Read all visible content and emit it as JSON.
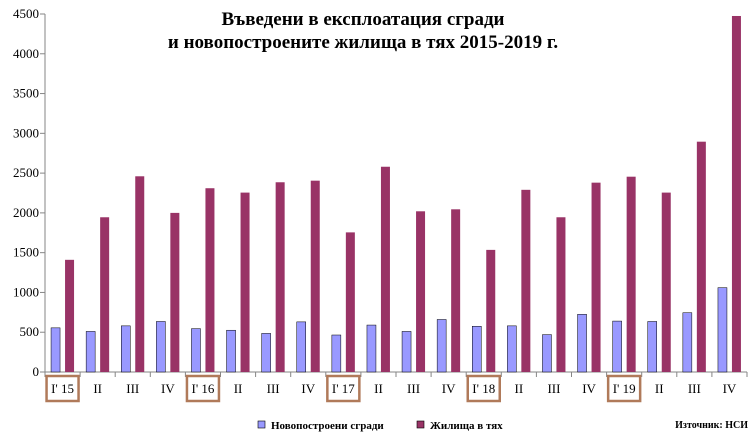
{
  "chart_data": {
    "type": "bar",
    "title_lines": [
      "Въведени в експлоатация сгради",
      "и новопостроените жилища в тях 2015-2019 г."
    ],
    "categories": [
      "I' 15",
      "II",
      "III",
      "IV",
      "I' 16",
      "II",
      "III",
      "IV",
      "I' 17",
      "II",
      "III",
      "IV",
      "I' 18",
      "II",
      "III",
      "IV",
      "I' 19",
      "II",
      "III",
      "IV"
    ],
    "highlighted_categories": [
      0,
      4,
      8,
      12,
      16
    ],
    "series": [
      {
        "name": "Новопостроени сгради",
        "color": "#9999ff",
        "values": [
          555,
          510,
          580,
          635,
          545,
          525,
          485,
          630,
          465,
          590,
          510,
          660,
          575,
          580,
          470,
          725,
          640,
          635,
          745,
          1060
        ]
      },
      {
        "name": "Жилища в тях",
        "color": "#993366",
        "values": [
          1410,
          1945,
          2460,
          2000,
          2310,
          2255,
          2385,
          2405,
          1755,
          2580,
          2020,
          2045,
          1535,
          2290,
          1945,
          2380,
          2455,
          2255,
          2895,
          4475
        ]
      }
    ],
    "ylim": [
      0,
      4500
    ],
    "yticks": [
      0,
      500,
      1000,
      1500,
      2000,
      2500,
      3000,
      3500,
      4000,
      4500
    ],
    "grid": false,
    "legend_position": "bottom",
    "source": "Източник: НСИ",
    "highlight_color": "#b07a5a"
  }
}
